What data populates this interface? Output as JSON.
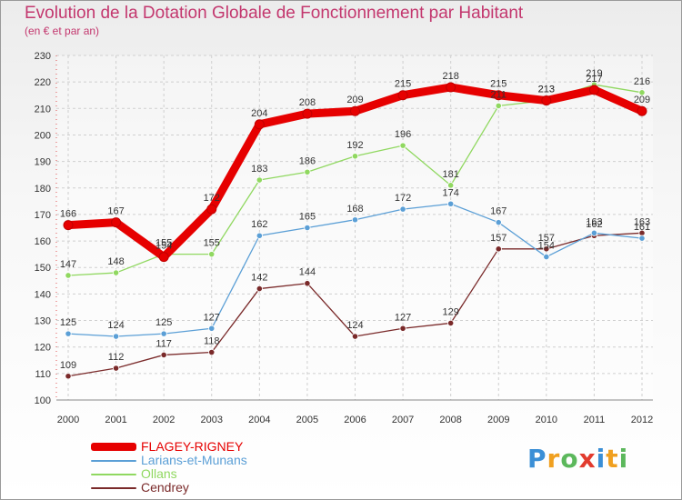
{
  "header": {
    "title": "Evolution de la Dotation Globale de Fonctionnement par Habitant",
    "subtitle": "(en € et par an)"
  },
  "brand": {
    "letters": [
      "P",
      "r",
      "o",
      "x",
      "i",
      "t",
      "i"
    ],
    "colors": [
      "#3b8fd6",
      "#f0a020",
      "#5cb85c",
      "#e23b2e",
      "#3b8fd6",
      "#f0a020",
      "#5cb85c"
    ]
  },
  "chart_data": {
    "type": "line",
    "title": "Evolution de la Dotation Globale de Fonctionnement par Habitant",
    "subtitle": "(en € et par an)",
    "xlabel": "",
    "ylabel": "",
    "ylim": [
      100,
      230
    ],
    "yticks": [
      100,
      110,
      120,
      130,
      140,
      150,
      160,
      170,
      180,
      190,
      200,
      210,
      220,
      230
    ],
    "grid": true,
    "legend_position": "bottom-left",
    "x": [
      "2000",
      "2001",
      "2002",
      "2003",
      "2004",
      "2005",
      "2006",
      "2007",
      "2008",
      "2009",
      "2010",
      "2011",
      "2012"
    ],
    "series": [
      {
        "name": "FLAGEY-RIGNEY",
        "color": "#e60000",
        "values": [
          166,
          167,
          154,
          172,
          204,
          208,
          209,
          215,
          218,
          215,
          213,
          217,
          209
        ]
      },
      {
        "name": "Larians-et-Munans",
        "color": "#5b9fd6",
        "values": [
          125,
          124,
          125,
          127,
          162,
          165,
          168,
          172,
          174,
          167,
          154,
          163,
          161
        ]
      },
      {
        "name": "Ollans",
        "color": "#90d860",
        "values": [
          147,
          148,
          155,
          155,
          183,
          186,
          192,
          196,
          181,
          211,
          213,
          219,
          216
        ]
      },
      {
        "name": "Cendrey",
        "color": "#7a2a2a",
        "values": [
          109,
          112,
          117,
          118,
          142,
          144,
          124,
          127,
          129,
          157,
          157,
          162,
          163
        ]
      }
    ]
  }
}
